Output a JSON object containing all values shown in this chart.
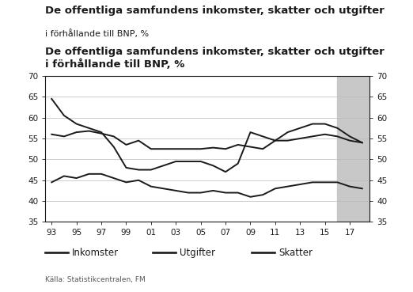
{
  "title_line1": "De offentliga samfundens inkomster, skatter och utgifter",
  "title_line2": "i förhållande till BNP, %",
  "source": "Källa: Statistikcentralen, FM",
  "background_color": "#ffffff",
  "plot_bg_color": "#ffffff",
  "shade_color": "#c8c8c8",
  "shade_start": 2016,
  "shade_end": 2018.6,
  "xlim": [
    1992.5,
    2018.6
  ],
  "ylim": [
    35,
    70
  ],
  "yticks": [
    35,
    40,
    45,
    50,
    55,
    60,
    65,
    70
  ],
  "xtick_labels": [
    "93",
    "95",
    "97",
    "99",
    "01",
    "03",
    "05",
    "07",
    "09",
    "11",
    "13",
    "15",
    "17"
  ],
  "xtick_positions": [
    1993,
    1995,
    1997,
    1999,
    2001,
    2003,
    2005,
    2007,
    2009,
    2011,
    2013,
    2015,
    2017
  ],
  "legend_labels": [
    "Inkomster",
    "Utgifter",
    "Skatter"
  ],
  "line_color": "#1a1a1a",
  "text_color": "#1a1a1a",
  "grid_color": "#bbbbbb",
  "years": [
    1993,
    1994,
    1995,
    1996,
    1997,
    1998,
    1999,
    2000,
    2001,
    2002,
    2003,
    2004,
    2005,
    2006,
    2007,
    2008,
    2009,
    2010,
    2011,
    2012,
    2013,
    2014,
    2015,
    2016,
    2017,
    2018
  ],
  "inkomster": [
    56.0,
    55.5,
    56.5,
    56.8,
    56.2,
    55.5,
    53.5,
    54.5,
    52.5,
    52.5,
    52.5,
    52.5,
    52.5,
    52.8,
    52.5,
    53.5,
    53.0,
    52.5,
    54.5,
    54.5,
    55.0,
    55.5,
    56.0,
    55.5,
    54.5,
    54.0
  ],
  "utgifter": [
    64.5,
    60.5,
    58.5,
    57.5,
    56.5,
    53.0,
    48.0,
    47.5,
    47.5,
    48.5,
    49.5,
    49.5,
    49.5,
    48.5,
    47.0,
    49.0,
    56.5,
    55.5,
    54.5,
    56.5,
    57.5,
    58.5,
    58.5,
    57.5,
    55.5,
    54.0
  ],
  "skatter": [
    44.5,
    46.0,
    45.5,
    46.5,
    46.5,
    45.5,
    44.5,
    45.0,
    43.5,
    43.0,
    42.5,
    42.0,
    42.0,
    42.5,
    42.0,
    42.0,
    41.0,
    41.5,
    43.0,
    43.5,
    44.0,
    44.5,
    44.5,
    44.5,
    43.5,
    43.0
  ],
  "title_fontsize": 9.5,
  "subtitle_fontsize": 8.0,
  "tick_fontsize": 7.5,
  "legend_fontsize": 8.5,
  "source_fontsize": 6.5,
  "linewidth": 1.4
}
